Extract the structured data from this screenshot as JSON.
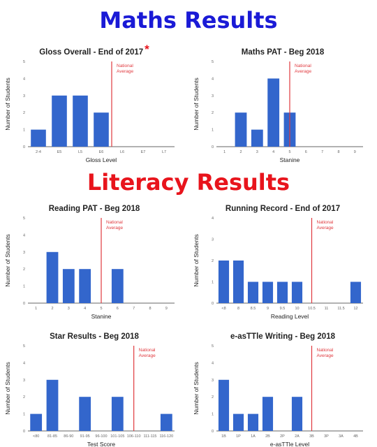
{
  "headings": {
    "maths": "Maths Results",
    "literacy": "Literacy Results"
  },
  "colors": {
    "bar": "#3366cc",
    "national_line": "#e0393e",
    "maths_heading": "#1a1ad6",
    "literacy_heading": "#e8141c"
  },
  "chart_data": [
    {
      "id": "gloss",
      "type": "bar",
      "title": "Gloss Overall - End of 2017",
      "title_mark": "*",
      "xlabel": "Gloss Level",
      "ylabel": "Number of Students",
      "categories": [
        "2-4",
        "E5",
        "L5",
        "E6",
        "L6",
        "E7",
        "L7"
      ],
      "values": [
        1,
        3,
        3,
        2,
        0,
        0,
        0
      ],
      "ylim": [
        0,
        5
      ],
      "yticks": [
        0,
        1,
        2,
        3,
        4,
        5
      ],
      "national_average": {
        "label": [
          "National",
          "Average"
        ],
        "x_index": 3.5
      }
    },
    {
      "id": "maths_pat",
      "type": "bar",
      "title": "Maths PAT - Beg 2018",
      "xlabel": "Stanine",
      "ylabel": "Number of Students",
      "categories": [
        "1",
        "2",
        "3",
        "4",
        "5",
        "6",
        "7",
        "8",
        "9"
      ],
      "values": [
        0,
        2,
        1,
        4,
        2,
        0,
        0,
        0,
        0
      ],
      "ylim": [
        0,
        5
      ],
      "yticks": [
        0,
        1,
        2,
        3,
        4,
        5
      ],
      "national_average": {
        "label": [
          "National",
          "Average"
        ],
        "x_index": 4.0
      }
    },
    {
      "id": "reading_pat",
      "type": "bar",
      "title": "Reading PAT - Beg 2018",
      "xlabel": "Stanine",
      "ylabel": "Number of Students",
      "categories": [
        "1",
        "2",
        "3",
        "4",
        "5",
        "6",
        "7",
        "8",
        "9"
      ],
      "values": [
        0,
        3,
        2,
        2,
        0,
        2,
        0,
        0,
        0
      ],
      "ylim": [
        0,
        5
      ],
      "yticks": [
        0,
        1,
        2,
        3,
        4,
        5
      ],
      "national_average": {
        "label": [
          "National",
          "Average"
        ],
        "x_index": 4.0
      }
    },
    {
      "id": "running_record",
      "type": "bar",
      "title": "Running Record - End of 2017",
      "xlabel": "Reading Level",
      "ylabel": "Number of Students",
      "categories": [
        "<8",
        "8",
        "8.5",
        "9",
        "9.5",
        "10",
        "10.5",
        "11",
        "11.5",
        "12"
      ],
      "values": [
        2,
        2,
        1,
        1,
        1,
        1,
        0,
        0,
        0,
        1
      ],
      "ylim": [
        0,
        4
      ],
      "yticks": [
        0,
        1,
        2,
        3,
        4
      ],
      "national_average": {
        "label": [
          "National",
          "Average"
        ],
        "x_index": 6.0
      }
    },
    {
      "id": "star",
      "type": "bar",
      "title": "Star Results - Beg 2018",
      "xlabel": "Test Score",
      "ylabel": "Number of Students",
      "categories": [
        "<80",
        "81-85",
        "86-90",
        "91-95",
        "96-100",
        "101-105",
        "106-110",
        "111-115",
        "116-120"
      ],
      "values": [
        1,
        3,
        0,
        2,
        0,
        2,
        0,
        0,
        1
      ],
      "ylim": [
        0,
        5
      ],
      "yticks": [
        0,
        1,
        2,
        3,
        4,
        5
      ],
      "national_average": {
        "label": [
          "National",
          "Average"
        ],
        "x_index": 6.0
      }
    },
    {
      "id": "easttle",
      "type": "bar",
      "title": "e-asTTle Writing - Beg 2018",
      "xlabel": "e-asTTle Level",
      "ylabel": "Number of Students",
      "categories": [
        "1B",
        "1P",
        "1A",
        "2B",
        "2P",
        "2A",
        "3B",
        "3P",
        "3A",
        "4B"
      ],
      "values": [
        3,
        1,
        1,
        2,
        0,
        2,
        0,
        0,
        0,
        0
      ],
      "ylim": [
        0,
        5
      ],
      "yticks": [
        0,
        1,
        2,
        3,
        4,
        5
      ],
      "national_average": {
        "label": [
          "National",
          "Average"
        ],
        "x_index": 6.0
      }
    }
  ]
}
